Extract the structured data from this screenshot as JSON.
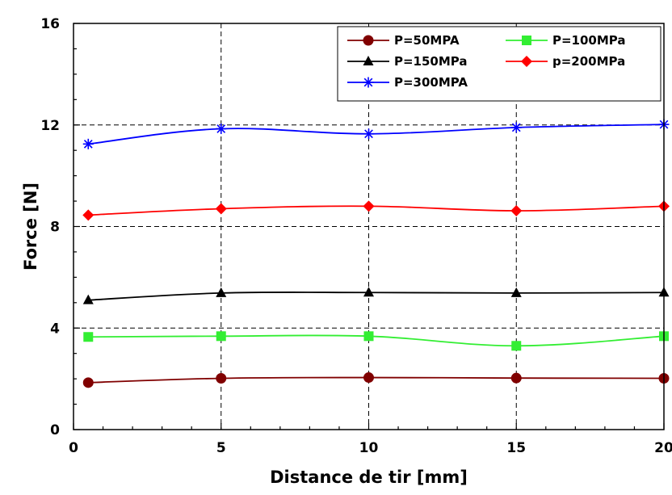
{
  "chart_data": {
    "type": "line",
    "title": "",
    "xlabel": "Distance de tir [mm]",
    "ylabel": "Force [N]",
    "xlim": [
      0,
      20
    ],
    "ylim": [
      0,
      16
    ],
    "xticks": [
      0,
      5,
      10,
      15,
      20
    ],
    "yticks": [
      0,
      4,
      8,
      12,
      16
    ],
    "x_minor_step": 1,
    "y_minor_step": 1,
    "grid": "dashed, major ticks only",
    "legend_position": "top-right",
    "x": [
      0.5,
      5,
      10,
      15,
      20
    ],
    "series": [
      {
        "name": "P=50MPA",
        "values": [
          1.85,
          2.02,
          2.05,
          2.03,
          2.02
        ],
        "color": "#800000",
        "marker": "circle"
      },
      {
        "name": "P=100MPa",
        "values": [
          3.65,
          3.68,
          3.68,
          3.3,
          3.68
        ],
        "color": "#33ee33",
        "marker": "square"
      },
      {
        "name": "P=150MPa",
        "values": [
          5.1,
          5.38,
          5.4,
          5.38,
          5.4
        ],
        "color": "#000000",
        "marker": "triangle"
      },
      {
        "name": "p=200MPa",
        "values": [
          8.45,
          8.7,
          8.8,
          8.62,
          8.8
        ],
        "color": "#ff0000",
        "marker": "diamond"
      },
      {
        "name": "P=300MPA",
        "values": [
          11.25,
          11.85,
          11.65,
          11.9,
          12.02
        ],
        "color": "#0000ff",
        "marker": "star"
      }
    ]
  }
}
